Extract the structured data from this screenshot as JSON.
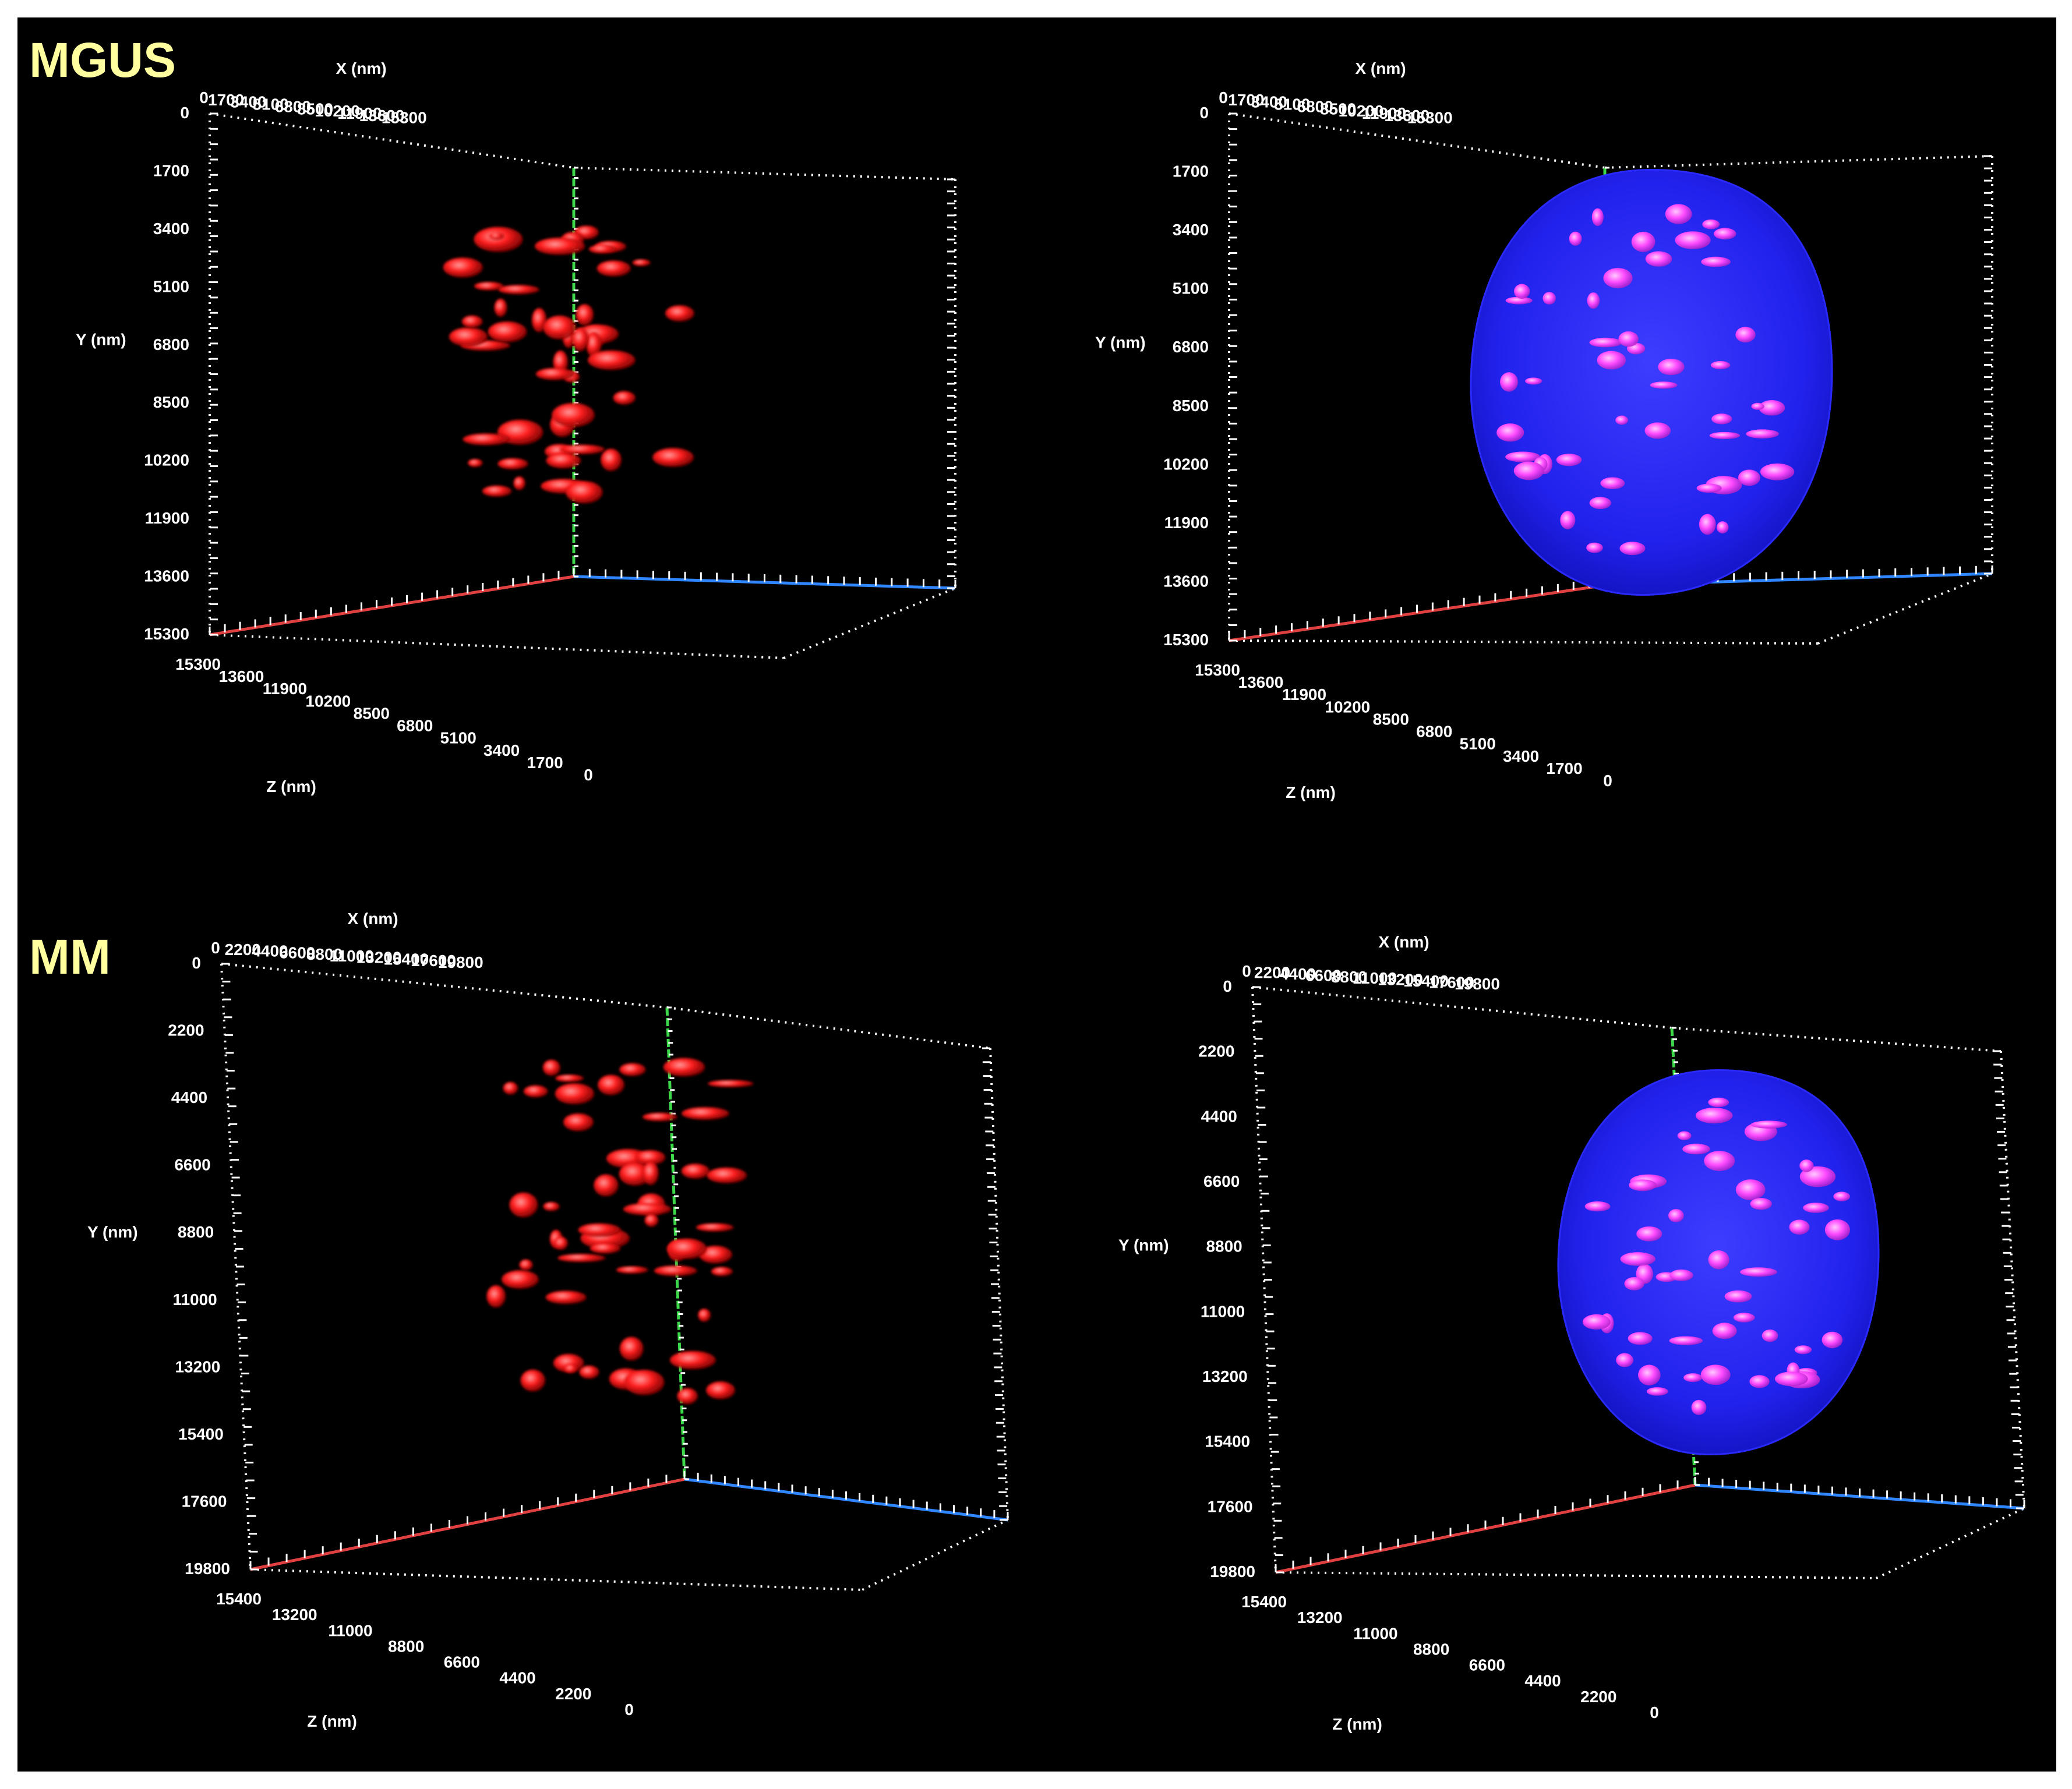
{
  "figure": {
    "colors": {
      "background": "#000000",
      "frame": "#ffffff",
      "label": "#ffffa0",
      "x_axis": "#e04040",
      "y_axis": "#2f86ff",
      "z_axis": "#3cd84a",
      "red_signal": "#ff2020",
      "nucleus": "#2222ee",
      "magenta_signal": "#ff4cff"
    },
    "rows": [
      {
        "title": "MGUS",
        "panels": [
          {
            "name": "mgus-red",
            "render": "red-spots",
            "axes": {
              "x_title": "X (nm)",
              "y_title": "Y (nm)",
              "z_title": "Z (nm)",
              "x_ticks": [
                "0",
                "1700",
                "3400",
                "5100",
                "6800",
                "8500",
                "10200",
                "11900",
                "13600",
                "15300"
              ],
              "y_ticks": [
                "0",
                "1700",
                "3400",
                "5100",
                "6800",
                "8500",
                "10200",
                "11900",
                "13600",
                "15300"
              ],
              "z_ticks": [
                "15300",
                "13600",
                "11900",
                "10200",
                "8500",
                "6800",
                "5100",
                "3400",
                "1700",
                "0"
              ]
            }
          },
          {
            "name": "mgus-blue",
            "render": "nucleus",
            "axes": {
              "x_title": "X (nm)",
              "y_title": "Y (nm)",
              "z_title": "Z (nm)",
              "x_ticks": [
                "0",
                "1700",
                "3400",
                "5100",
                "6800",
                "8500",
                "10200",
                "11900",
                "13600",
                "15300"
              ],
              "y_ticks": [
                "0",
                "1700",
                "3400",
                "5100",
                "6800",
                "8500",
                "10200",
                "11900",
                "13600",
                "15300"
              ],
              "z_ticks": [
                "15300",
                "13600",
                "11900",
                "10200",
                "8500",
                "6800",
                "5100",
                "3400",
                "1700",
                "0"
              ]
            }
          }
        ]
      },
      {
        "title": "MM",
        "panels": [
          {
            "name": "mm-red",
            "render": "red-spots",
            "axes": {
              "x_title": "X (nm)",
              "y_title": "Y (nm)",
              "z_title": "Z (nm)",
              "x_ticks": [
                "0",
                "2200",
                "4400",
                "6600",
                "8800",
                "11000",
                "13200",
                "15400",
                "17600",
                "19800"
              ],
              "y_ticks": [
                "0",
                "2200",
                "4400",
                "6600",
                "8800",
                "11000",
                "13200",
                "15400",
                "17600",
                "19800"
              ],
              "z_ticks": [
                "15400",
                "13200",
                "11000",
                "8800",
                "6600",
                "4400",
                "2200",
                "0"
              ]
            }
          },
          {
            "name": "mm-blue",
            "render": "nucleus",
            "axes": {
              "x_title": "X (nm)",
              "y_title": "Y (nm)",
              "z_title": "Z (nm)",
              "x_ticks": [
                "0",
                "2200",
                "4400",
                "6600",
                "8800",
                "11000",
                "13200",
                "15400",
                "17600",
                "19800"
              ],
              "y_ticks": [
                "0",
                "2200",
                "4400",
                "6600",
                "8800",
                "11000",
                "13200",
                "15400",
                "17600",
                "19800"
              ],
              "z_ticks": [
                "15400",
                "13200",
                "11000",
                "8800",
                "6600",
                "4400",
                "2200",
                "0"
              ]
            }
          }
        ]
      }
    ]
  }
}
